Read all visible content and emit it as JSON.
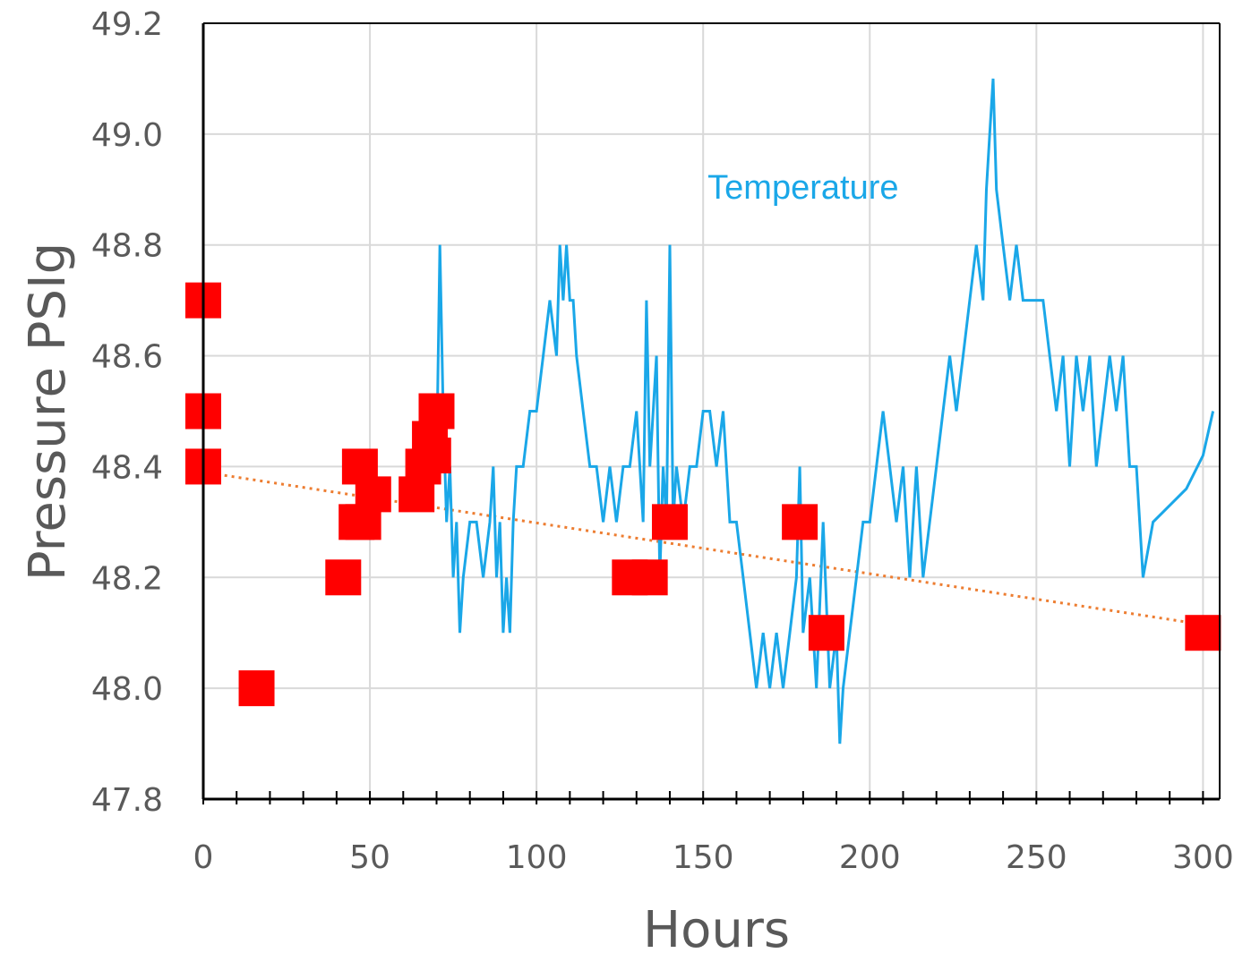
{
  "chart_data": {
    "type": "scatter",
    "title": "",
    "xlabel": "Hours",
    "ylabel": "Pressure PSIg",
    "xlim": [
      0,
      305
    ],
    "ylim": [
      47.8,
      49.2
    ],
    "x_ticks": [
      0,
      50,
      100,
      150,
      200,
      250,
      300
    ],
    "x_tick_labels": [
      "0",
      "50",
      "100",
      "150",
      "200",
      "250",
      "300"
    ],
    "y_ticks": [
      47.8,
      48.0,
      48.2,
      48.4,
      48.6,
      48.8,
      49.0,
      49.2
    ],
    "y_tick_labels": [
      "47.8",
      "48.0",
      "48.2",
      "48.4",
      "48.6",
      "48.8",
      "49.0",
      "49.2"
    ],
    "grid": true,
    "annotations": [
      {
        "text": "Temperature",
        "x": 180,
        "y": 48.9,
        "color": "#1aa7e8"
      }
    ],
    "series": [
      {
        "type": "line",
        "color": "#1aa7e8",
        "x": [
          70,
          71,
          72,
          73,
          74,
          75,
          76,
          77,
          78,
          80,
          82,
          84,
          86,
          87,
          88,
          89,
          90,
          91,
          92,
          93,
          94,
          96,
          98,
          100,
          102,
          104,
          106,
          107,
          108,
          109,
          110,
          111,
          112,
          114,
          116,
          118,
          120,
          122,
          124,
          126,
          128,
          130,
          132,
          133,
          134,
          136,
          137,
          138,
          139,
          140,
          141,
          142,
          144,
          146,
          148,
          150,
          152,
          154,
          156,
          158,
          160,
          162,
          164,
          166,
          168,
          170,
          172,
          174,
          176,
          178,
          179,
          180,
          182,
          184,
          186,
          188,
          190,
          191,
          192,
          194,
          196,
          198,
          200,
          202,
          204,
          206,
          208,
          210,
          212,
          214,
          216,
          218,
          220,
          222,
          224,
          226,
          228,
          230,
          232,
          234,
          235,
          236,
          237,
          238,
          240,
          242,
          244,
          246,
          248,
          250,
          252,
          254,
          256,
          258,
          260,
          262,
          264,
          266,
          268,
          270,
          272,
          274,
          276,
          278,
          280,
          281,
          282,
          285,
          290,
          295,
          300,
          303
        ],
        "y": [
          48.4,
          48.8,
          48.5,
          48.3,
          48.4,
          48.2,
          48.3,
          48.1,
          48.2,
          48.3,
          48.3,
          48.2,
          48.3,
          48.4,
          48.2,
          48.3,
          48.1,
          48.2,
          48.1,
          48.3,
          48.4,
          48.4,
          48.5,
          48.5,
          48.6,
          48.7,
          48.6,
          48.8,
          48.7,
          48.8,
          48.7,
          48.7,
          48.6,
          48.5,
          48.4,
          48.4,
          48.3,
          48.4,
          48.3,
          48.4,
          48.4,
          48.5,
          48.3,
          48.7,
          48.4,
          48.6,
          48.2,
          48.4,
          48.3,
          48.8,
          48.3,
          48.4,
          48.3,
          48.4,
          48.4,
          48.5,
          48.5,
          48.4,
          48.5,
          48.3,
          48.3,
          48.2,
          48.1,
          48.0,
          48.1,
          48.0,
          48.1,
          48.0,
          48.1,
          48.2,
          48.4,
          48.1,
          48.2,
          48.0,
          48.3,
          48.0,
          48.1,
          47.9,
          48.0,
          48.1,
          48.2,
          48.3,
          48.3,
          48.4,
          48.5,
          48.4,
          48.3,
          48.4,
          48.2,
          48.4,
          48.2,
          48.3,
          48.4,
          48.5,
          48.6,
          48.5,
          48.6,
          48.7,
          48.8,
          48.7,
          48.9,
          49.0,
          49.1,
          48.9,
          48.8,
          48.7,
          48.8,
          48.7,
          48.7,
          48.7,
          48.7,
          48.6,
          48.5,
          48.6,
          48.4,
          48.6,
          48.5,
          48.6,
          48.4,
          48.5,
          48.6,
          48.5,
          48.6,
          48.4,
          48.4,
          48.3,
          48.2,
          48.3,
          48.33,
          48.36,
          48.42,
          48.5
        ]
      },
      {
        "type": "scatter",
        "marker": "square",
        "color": "#ff0000",
        "x": [
          0,
          0,
          0,
          16,
          42,
          46,
          47,
          48,
          51,
          64,
          66,
          68,
          69,
          70,
          128,
          134,
          140,
          179,
          187,
          300
        ],
        "y": [
          48.7,
          48.5,
          48.4,
          48.0,
          48.2,
          48.3,
          48.4,
          48.3,
          48.35,
          48.35,
          48.4,
          48.45,
          48.42,
          48.5,
          48.2,
          48.2,
          48.3,
          48.3,
          48.1,
          48.1
        ]
      },
      {
        "type": "line",
        "style": "dotted",
        "color": "#ed7d31",
        "x": [
          0,
          300
        ],
        "y": [
          48.39,
          48.115
        ]
      }
    ]
  }
}
